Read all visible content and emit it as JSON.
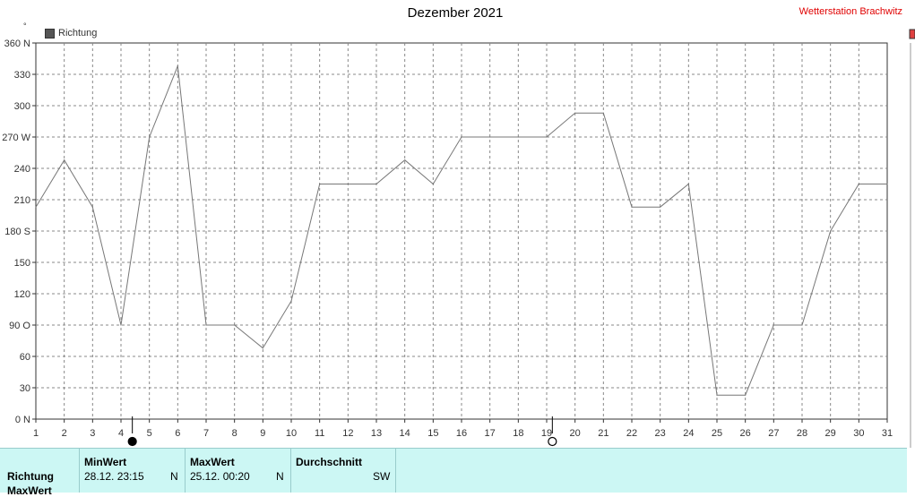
{
  "header": {
    "title": "Dezember 2021",
    "station": "Wetterstation Brachwitz"
  },
  "legend": {
    "label": "Richtung",
    "deg_symbol": "°"
  },
  "chart_data": {
    "type": "line",
    "title": "Dezember 2021",
    "x": [
      1,
      2,
      3,
      4,
      5,
      6,
      7,
      8,
      9,
      10,
      11,
      12,
      13,
      14,
      15,
      16,
      17,
      18,
      19,
      20,
      21,
      22,
      23,
      24,
      25,
      26,
      27,
      28,
      29,
      30,
      31
    ],
    "series": [
      {
        "name": "Richtung",
        "values": [
          203,
          248,
          203,
          90,
          270,
          338,
          90,
          90,
          68,
          113,
          225,
          225,
          225,
          248,
          225,
          270,
          270,
          270,
          270,
          293,
          293,
          203,
          203,
          225,
          23,
          23,
          90,
          90,
          180,
          225,
          225
        ]
      }
    ],
    "xlim": [
      1,
      31
    ],
    "ylim": [
      0,
      360
    ],
    "yticks": [
      0,
      30,
      60,
      90,
      120,
      150,
      180,
      210,
      240,
      270,
      300,
      330,
      360
    ],
    "ytick_labels": [
      "0 N",
      "30",
      "60",
      "90 O",
      "120",
      "150",
      "180 S",
      "210",
      "240",
      "270 W",
      "300",
      "330",
      "360 N"
    ],
    "xtick_labels": [
      "1",
      "2",
      "3",
      "4",
      "5",
      "6",
      "7",
      "8",
      "9",
      "10",
      "11",
      "12",
      "13",
      "14",
      "15",
      "16",
      "17",
      "18",
      "19",
      "20",
      "21",
      "22",
      "23",
      "24",
      "25",
      "26",
      "27",
      "28",
      "29",
      "30",
      "31"
    ],
    "grid": true,
    "legend_position": "top-left",
    "line_color": "#777777",
    "moon_phases": [
      {
        "day": 4.4,
        "phase": "new"
      },
      {
        "day": 19.2,
        "phase": "full"
      }
    ]
  },
  "footer": {
    "row_label": "Richtung",
    "row_label2": "MaxWert",
    "min": {
      "head": "MinWert",
      "value": "28.12.  23:15",
      "dir": "N"
    },
    "max": {
      "head": "MaxWert",
      "value": "25.12.  00:20",
      "dir": "N"
    },
    "avg": {
      "head": "Durchschnitt",
      "dir": "SW"
    }
  },
  "colors": {
    "background": "#ffffff",
    "footer": "#ccf7f4",
    "station": "#e00000",
    "grid": "#888888"
  }
}
